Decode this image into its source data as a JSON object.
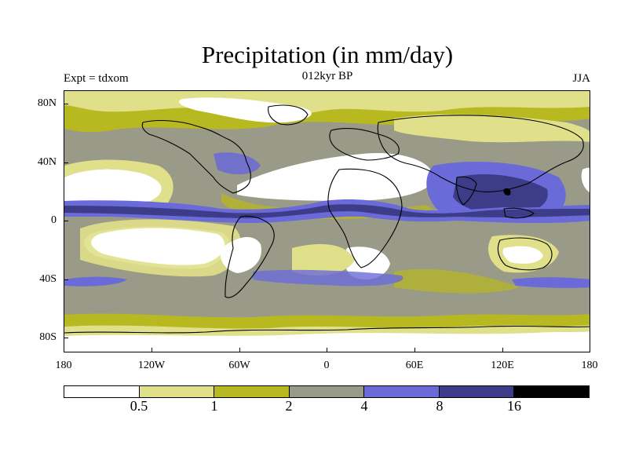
{
  "title": "Precipitation (in mm/day)",
  "subtitle_left": "Expt = tdxom",
  "subtitle_center": "012kyr BP",
  "subtitle_right": "JJA",
  "lat_labels": [
    "80N",
    "40N",
    "0",
    "40S",
    "80S"
  ],
  "lon_labels": [
    "180",
    "120W",
    "60W",
    "0",
    "60E",
    "120E",
    "180"
  ],
  "colorbar": {
    "colors": [
      "#ffffff",
      "#e0e08a",
      "#b8b820",
      "#9a9a88",
      "#6a6ad8",
      "#3c3c88",
      "#000000"
    ],
    "labels": [
      "0.5",
      "1",
      "2",
      "4",
      "8",
      "16"
    ]
  },
  "colors": {
    "lt_yellow": "#e0e08a",
    "olive": "#b8b820",
    "grey": "#9a9a88",
    "blue": "#6a6ad8",
    "dk_blue": "#3c3c88",
    "black": "#000000"
  }
}
